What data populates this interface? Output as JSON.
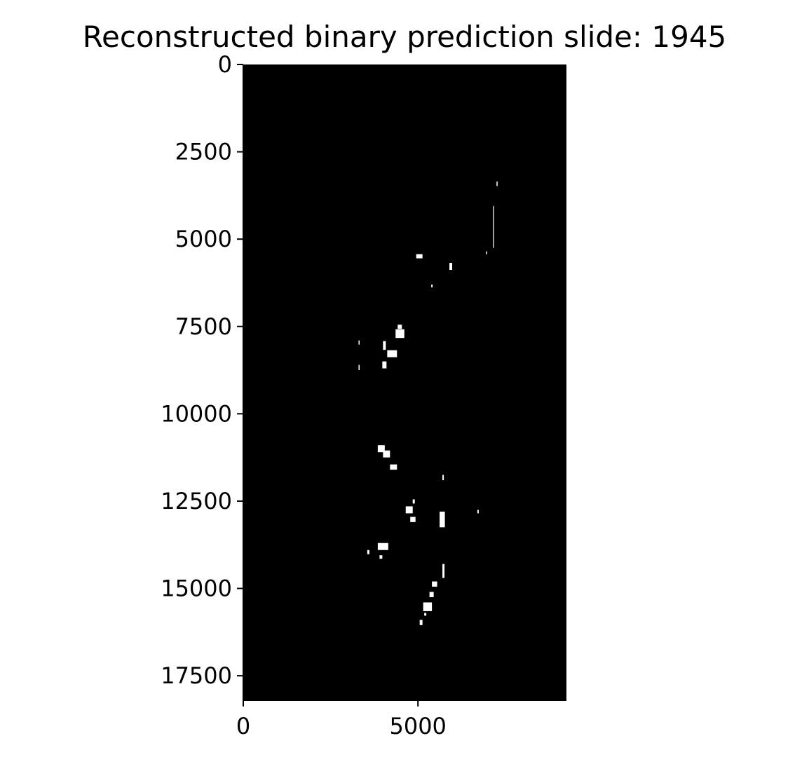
{
  "chart_data": {
    "type": "heatmap",
    "title": "Reconstructed binary prediction slide: 1945",
    "xlabel": "",
    "ylabel": "",
    "x_range": [
      0,
      9250
    ],
    "y_range": [
      18200,
      0
    ],
    "x_ticks": [
      0,
      5000
    ],
    "x_tick_labels": [
      "0",
      "5000"
    ],
    "y_ticks": [
      0,
      2500,
      5000,
      7500,
      10000,
      12500,
      15000,
      17500
    ],
    "y_tick_labels": [
      "0",
      "2500",
      "5000",
      "7500",
      "10000",
      "12500",
      "15000",
      "17500"
    ],
    "grid": false,
    "colormap": "binary (black = 0, white = 1)",
    "colors": {
      "background": "#000000",
      "positive": "#ffffff",
      "axis": "#000000"
    },
    "positive_regions": [
      {
        "x": 4950,
        "y": 5430,
        "w": 180,
        "h": 120
      },
      {
        "x": 5900,
        "y": 5680,
        "w": 80,
        "h": 200
      },
      {
        "x": 7250,
        "y": 3350,
        "w": 30,
        "h": 130
      },
      {
        "x": 7150,
        "y": 4050,
        "w": 25,
        "h": 1200
      },
      {
        "x": 6950,
        "y": 5350,
        "w": 30,
        "h": 80
      },
      {
        "x": 5380,
        "y": 6300,
        "w": 40,
        "h": 80
      },
      {
        "x": 4420,
        "y": 7450,
        "w": 120,
        "h": 120
      },
      {
        "x": 4360,
        "y": 7580,
        "w": 250,
        "h": 250
      },
      {
        "x": 4120,
        "y": 8180,
        "w": 280,
        "h": 200
      },
      {
        "x": 4000,
        "y": 7920,
        "w": 80,
        "h": 250
      },
      {
        "x": 3980,
        "y": 8500,
        "w": 120,
        "h": 200
      },
      {
        "x": 3300,
        "y": 7900,
        "w": 30,
        "h": 120
      },
      {
        "x": 3300,
        "y": 8600,
        "w": 30,
        "h": 150
      },
      {
        "x": 3850,
        "y": 10900,
        "w": 200,
        "h": 200
      },
      {
        "x": 4000,
        "y": 11050,
        "w": 200,
        "h": 200
      },
      {
        "x": 4200,
        "y": 11450,
        "w": 200,
        "h": 150
      },
      {
        "x": 4650,
        "y": 12650,
        "w": 200,
        "h": 200
      },
      {
        "x": 4850,
        "y": 12450,
        "w": 60,
        "h": 120
      },
      {
        "x": 4780,
        "y": 12950,
        "w": 150,
        "h": 150
      },
      {
        "x": 5620,
        "y": 12800,
        "w": 150,
        "h": 450
      },
      {
        "x": 5700,
        "y": 11750,
        "w": 40,
        "h": 150
      },
      {
        "x": 6700,
        "y": 12750,
        "w": 40,
        "h": 100
      },
      {
        "x": 3850,
        "y": 13700,
        "w": 300,
        "h": 200
      },
      {
        "x": 3550,
        "y": 13900,
        "w": 60,
        "h": 120
      },
      {
        "x": 3900,
        "y": 14050,
        "w": 80,
        "h": 100
      },
      {
        "x": 5700,
        "y": 14300,
        "w": 60,
        "h": 400
      },
      {
        "x": 5400,
        "y": 14800,
        "w": 150,
        "h": 150
      },
      {
        "x": 5330,
        "y": 15100,
        "w": 120,
        "h": 150
      },
      {
        "x": 5150,
        "y": 15400,
        "w": 250,
        "h": 250
      },
      {
        "x": 5050,
        "y": 15900,
        "w": 80,
        "h": 150
      },
      {
        "x": 5180,
        "y": 15700,
        "w": 60,
        "h": 80
      }
    ]
  }
}
